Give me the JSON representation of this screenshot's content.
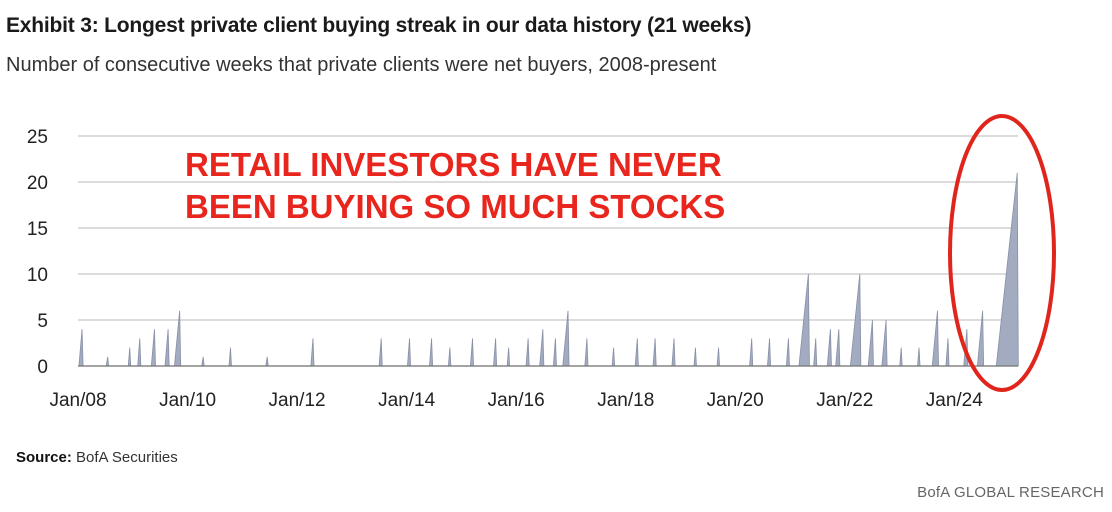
{
  "title": "Exhibit 3: Longest private client buying streak in our data history (21 weeks)",
  "subtitle": "Number of consecutive weeks that private clients were net buyers, 2008-present",
  "source_label": "Source:",
  "source_value": "BofA Securities",
  "brand": "BofA GLOBAL RESEARCH",
  "colors": {
    "area_fill": "#a3abc0",
    "area_stroke": "#8890a8",
    "grid": "#c8c8c8",
    "annotation": "#e8261d",
    "oval": "#e0261c"
  },
  "chart_data": {
    "type": "area",
    "title": "Exhibit 3: Longest private client buying streak in our data history (21 weeks)",
    "subtitle": "Number of consecutive weeks that private clients were net buyers, 2008-present",
    "xlabel": "",
    "ylabel": "",
    "x_range": [
      "2008-01",
      "2025-03"
    ],
    "ylim": [
      0,
      25
    ],
    "yticks": [
      0,
      5,
      10,
      15,
      20,
      25
    ],
    "xtick_labels": [
      "Jan/08",
      "Jan/10",
      "Jan/12",
      "Jan/14",
      "Jan/16",
      "Jan/18",
      "Jan/20",
      "Jan/22",
      "Jan/24"
    ],
    "grid": "horizontal",
    "annotation": [
      "RETAIL INVESTORS HAVE NEVER",
      "BEEN BUYING SO MUCH STOCKS"
    ],
    "highlight": "red oval around the 2024-2025 peak",
    "series": [
      {
        "peaks": [
          {
            "start": "2008-01-07",
            "weeks": 4
          },
          {
            "start": "2008-07-07",
            "weeks": 1
          },
          {
            "start": "2008-12-01",
            "weeks": 2
          },
          {
            "start": "2009-02-02",
            "weeks": 3
          },
          {
            "start": "2009-05-04",
            "weeks": 4
          },
          {
            "start": "2009-08-03",
            "weeks": 4
          },
          {
            "start": "2009-10-05",
            "weeks": 6
          },
          {
            "start": "2010-04-05",
            "weeks": 1
          },
          {
            "start": "2010-10-04",
            "weeks": 2
          },
          {
            "start": "2011-06-06",
            "weeks": 1
          },
          {
            "start": "2012-04-02",
            "weeks": 3
          },
          {
            "start": "2013-07-01",
            "weeks": 3
          },
          {
            "start": "2014-01-06",
            "weeks": 3
          },
          {
            "start": "2014-06-02",
            "weeks": 3
          },
          {
            "start": "2014-10-06",
            "weeks": 2
          },
          {
            "start": "2015-03-02",
            "weeks": 3
          },
          {
            "start": "2015-08-03",
            "weeks": 3
          },
          {
            "start": "2015-11-02",
            "weeks": 2
          },
          {
            "start": "2016-03-07",
            "weeks": 3
          },
          {
            "start": "2016-06-06",
            "weeks": 4
          },
          {
            "start": "2016-09-05",
            "weeks": 3
          },
          {
            "start": "2016-11-07",
            "weeks": 6
          },
          {
            "start": "2017-04-03",
            "weeks": 3
          },
          {
            "start": "2017-10-02",
            "weeks": 2
          },
          {
            "start": "2018-03-05",
            "weeks": 3
          },
          {
            "start": "2018-07-02",
            "weeks": 3
          },
          {
            "start": "2018-11-05",
            "weeks": 3
          },
          {
            "start": "2019-04-01",
            "weeks": 2
          },
          {
            "start": "2019-09-02",
            "weeks": 2
          },
          {
            "start": "2020-04-06",
            "weeks": 3
          },
          {
            "start": "2020-08-03",
            "weeks": 3
          },
          {
            "start": "2020-12-07",
            "weeks": 3
          },
          {
            "start": "2021-03-01",
            "weeks": 10
          },
          {
            "start": "2021-06-07",
            "weeks": 3
          },
          {
            "start": "2021-09-06",
            "weeks": 4
          },
          {
            "start": "2021-11-01",
            "weeks": 4
          },
          {
            "start": "2022-02-07",
            "weeks": 10
          },
          {
            "start": "2022-06-06",
            "weeks": 5
          },
          {
            "start": "2022-09-05",
            "weeks": 5
          },
          {
            "start": "2023-01-02",
            "weeks": 2
          },
          {
            "start": "2023-05-01",
            "weeks": 2
          },
          {
            "start": "2023-08-07",
            "weeks": 6
          },
          {
            "start": "2023-11-06",
            "weeks": 3
          },
          {
            "start": "2024-03-04",
            "weeks": 4
          },
          {
            "start": "2024-06-03",
            "weeks": 6
          },
          {
            "start": "2024-10-07",
            "weeks": 21
          }
        ]
      }
    ]
  }
}
